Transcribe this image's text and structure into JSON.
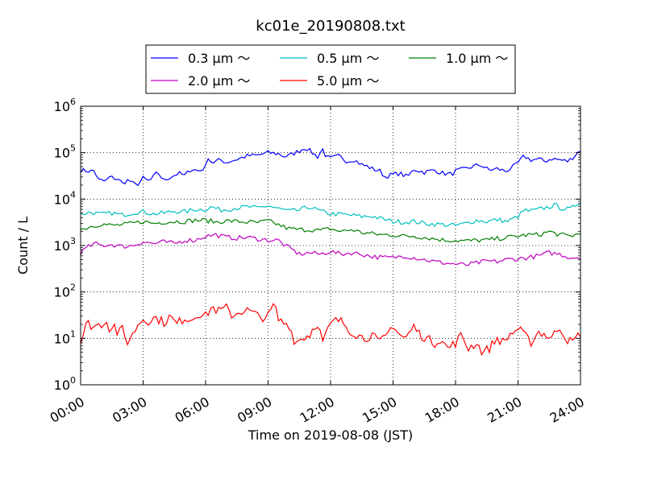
{
  "chart_data": {
    "type": "line",
    "title": "kc01e_20190808.txt",
    "xlabel": "Time on 2019-08-08 (JST)",
    "ylabel": "Count / L",
    "yscale": "log",
    "xlim_hours": [
      0,
      24
    ],
    "ylim": [
      1,
      1000000
    ],
    "x_ticks": [
      "00:00",
      "03:00",
      "06:00",
      "09:00",
      "12:00",
      "15:00",
      "18:00",
      "21:00",
      "24:00"
    ],
    "y_ticks": [
      {
        "base": "10",
        "exp": "0",
        "value": 1
      },
      {
        "base": "10",
        "exp": "1",
        "value": 10
      },
      {
        "base": "10",
        "exp": "2",
        "value": 100
      },
      {
        "base": "10",
        "exp": "3",
        "value": 1000
      },
      {
        "base": "10",
        "exp": "4",
        "value": 10000
      },
      {
        "base": "10",
        "exp": "5",
        "value": 100000
      },
      {
        "base": "10",
        "exp": "6",
        "value": 1000000
      }
    ],
    "grid": true,
    "legend_position": "top-center",
    "series": [
      {
        "name": "0.3 μm ～",
        "color": "#0000ff",
        "keypoints": [
          [
            0,
            42000
          ],
          [
            0.5,
            40000
          ],
          [
            0.7,
            42000
          ],
          [
            0.8,
            26000
          ],
          [
            1.2,
            24000
          ],
          [
            1.4,
            30000
          ],
          [
            1.8,
            27000
          ],
          [
            2,
            22000
          ],
          [
            2.3,
            26000
          ],
          [
            2.6,
            20000
          ],
          [
            2.8,
            22000
          ],
          [
            3,
            28000
          ],
          [
            3.3,
            24000
          ],
          [
            3.7,
            38000
          ],
          [
            4,
            25000
          ],
          [
            4.3,
            30000
          ],
          [
            4.7,
            36000
          ],
          [
            5,
            32000
          ],
          [
            5.3,
            45000
          ],
          [
            5.7,
            40000
          ],
          [
            6,
            50000
          ],
          [
            6.1,
            85000
          ],
          [
            6.3,
            60000
          ],
          [
            6.7,
            70000
          ],
          [
            7,
            62000
          ],
          [
            7.5,
            72000
          ],
          [
            8,
            85000
          ],
          [
            8.5,
            88000
          ],
          [
            9,
            100000
          ],
          [
            9.5,
            95000
          ],
          [
            9.8,
            82000
          ],
          [
            10.1,
            90000
          ],
          [
            10.5,
            110000
          ],
          [
            10.8,
            130000
          ],
          [
            11,
            110000
          ],
          [
            11.4,
            80000
          ],
          [
            11.6,
            125000
          ],
          [
            11.8,
            80000
          ],
          [
            12,
            75000
          ],
          [
            12.4,
            85000
          ],
          [
            12.8,
            65000
          ],
          [
            13.1,
            72000
          ],
          [
            13.5,
            55000
          ],
          [
            13.8,
            50000
          ],
          [
            14,
            45000
          ],
          [
            14.4,
            40000
          ],
          [
            14.6,
            30000
          ],
          [
            15,
            34000
          ],
          [
            15.3,
            36000
          ],
          [
            15.7,
            30000
          ],
          [
            16,
            44000
          ],
          [
            16.5,
            38000
          ],
          [
            17,
            42000
          ],
          [
            17.4,
            36000
          ],
          [
            17.8,
            34000
          ],
          [
            18,
            40000
          ],
          [
            18.4,
            44000
          ],
          [
            18.8,
            50000
          ],
          [
            19.2,
            55000
          ],
          [
            19.6,
            42000
          ],
          [
            20,
            45000
          ],
          [
            20.4,
            40000
          ],
          [
            20.8,
            50000
          ],
          [
            21,
            60000
          ],
          [
            21.3,
            85000
          ],
          [
            21.6,
            70000
          ],
          [
            22,
            72000
          ],
          [
            22.3,
            65000
          ],
          [
            22.6,
            75000
          ],
          [
            23,
            70000
          ],
          [
            23.4,
            65000
          ],
          [
            23.7,
            85000
          ],
          [
            24,
            115000
          ]
        ]
      },
      {
        "name": "0.5 μm ～",
        "color": "#00bfbf",
        "keypoints": [
          [
            0,
            4800
          ],
          [
            0.5,
            5200
          ],
          [
            1,
            4700
          ],
          [
            1.5,
            5000
          ],
          [
            2,
            4500
          ],
          [
            2.5,
            5100
          ],
          [
            3,
            5400
          ],
          [
            3.5,
            4800
          ],
          [
            4,
            5000
          ],
          [
            4.5,
            5500
          ],
          [
            5,
            5300
          ],
          [
            5.5,
            6000
          ],
          [
            6,
            6000
          ],
          [
            6.3,
            6800
          ],
          [
            6.7,
            5800
          ],
          [
            7,
            6000
          ],
          [
            7.5,
            6500
          ],
          [
            8,
            6800
          ],
          [
            8.5,
            6400
          ],
          [
            9,
            7200
          ],
          [
            9.5,
            6200
          ],
          [
            10,
            5500
          ],
          [
            10.5,
            5800
          ],
          [
            11,
            6800
          ],
          [
            11.5,
            5500
          ],
          [
            12,
            4800
          ],
          [
            12.5,
            4700
          ],
          [
            13,
            4500
          ],
          [
            13.5,
            4200
          ],
          [
            14,
            4300
          ],
          [
            14.5,
            3700
          ],
          [
            15,
            3300
          ],
          [
            15.5,
            3200
          ],
          [
            16,
            3300
          ],
          [
            16.5,
            3000
          ],
          [
            17,
            2900
          ],
          [
            17.5,
            2800
          ],
          [
            18,
            2700
          ],
          [
            18.5,
            3000
          ],
          [
            19,
            3500
          ],
          [
            19.5,
            3300
          ],
          [
            20,
            3600
          ],
          [
            20.5,
            3300
          ],
          [
            21,
            4200
          ],
          [
            21.3,
            5800
          ],
          [
            21.6,
            5500
          ],
          [
            22,
            6000
          ],
          [
            22.5,
            6800
          ],
          [
            22.8,
            7500
          ],
          [
            23,
            6500
          ],
          [
            23.5,
            6000
          ],
          [
            24,
            9000
          ]
        ]
      },
      {
        "name": "1.0 μm ～",
        "color": "#008000",
        "keypoints": [
          [
            0,
            2200
          ],
          [
            0.5,
            2600
          ],
          [
            1,
            2900
          ],
          [
            1.5,
            2700
          ],
          [
            2,
            2800
          ],
          [
            2.5,
            3000
          ],
          [
            3,
            3300
          ],
          [
            3.5,
            3000
          ],
          [
            4,
            3200
          ],
          [
            4.5,
            3300
          ],
          [
            5,
            3300
          ],
          [
            5.5,
            3500
          ],
          [
            6,
            3500
          ],
          [
            6.5,
            3200
          ],
          [
            7,
            3400
          ],
          [
            7.5,
            3300
          ],
          [
            8,
            3200
          ],
          [
            8.5,
            3100
          ],
          [
            9,
            3400
          ],
          [
            9.5,
            2800
          ],
          [
            10,
            2300
          ],
          [
            10.5,
            2200
          ],
          [
            11,
            2200
          ],
          [
            11.5,
            2100
          ],
          [
            12,
            2300
          ],
          [
            12.5,
            2000
          ],
          [
            13,
            2200
          ],
          [
            13.5,
            1900
          ],
          [
            14,
            1800
          ],
          [
            14.5,
            1700
          ],
          [
            15,
            1700
          ],
          [
            15.5,
            1600
          ],
          [
            16,
            1600
          ],
          [
            16.5,
            1500
          ],
          [
            17,
            1400
          ],
          [
            17.5,
            1300
          ],
          [
            18,
            1300
          ],
          [
            18.5,
            1250
          ],
          [
            19,
            1300
          ],
          [
            19.5,
            1300
          ],
          [
            20,
            1400
          ],
          [
            20.5,
            1500
          ],
          [
            21,
            1600
          ],
          [
            21.5,
            1700
          ],
          [
            22,
            1700
          ],
          [
            22.5,
            2000
          ],
          [
            23,
            1700
          ],
          [
            23.5,
            1600
          ],
          [
            24,
            1800
          ]
        ]
      },
      {
        "name": "2.0 μm ～",
        "color": "#bf00bf",
        "keypoints": [
          [
            0,
            700
          ],
          [
            0.3,
            900
          ],
          [
            0.7,
            1100
          ],
          [
            1,
            1000
          ],
          [
            1.5,
            1050
          ],
          [
            2,
            950
          ],
          [
            2.5,
            1000
          ],
          [
            3,
            1200
          ],
          [
            3.5,
            1100
          ],
          [
            4,
            1200
          ],
          [
            4.5,
            1100
          ],
          [
            5,
            1300
          ],
          [
            5.5,
            1300
          ],
          [
            6,
            1600
          ],
          [
            6.5,
            1700
          ],
          [
            7,
            1500
          ],
          [
            7.5,
            1450
          ],
          [
            8,
            1500
          ],
          [
            8.5,
            1400
          ],
          [
            9,
            1300
          ],
          [
            9.5,
            1300
          ],
          [
            9.8,
            1000
          ],
          [
            10,
            900
          ],
          [
            10.5,
            650
          ],
          [
            11,
            700
          ],
          [
            11.5,
            650
          ],
          [
            12,
            750
          ],
          [
            12.5,
            650
          ],
          [
            13,
            700
          ],
          [
            13.5,
            650
          ],
          [
            14,
            580
          ],
          [
            14.5,
            550
          ],
          [
            15,
            550
          ],
          [
            15.5,
            600
          ],
          [
            16,
            550
          ],
          [
            16.5,
            500
          ],
          [
            17,
            450
          ],
          [
            17.5,
            420
          ],
          [
            18,
            400
          ],
          [
            18.5,
            380
          ],
          [
            19,
            420
          ],
          [
            19.5,
            460
          ],
          [
            20,
            450
          ],
          [
            20.5,
            500
          ],
          [
            21,
            520
          ],
          [
            21.5,
            550
          ],
          [
            22,
            600
          ],
          [
            22.5,
            700
          ],
          [
            23,
            650
          ],
          [
            23.5,
            550
          ],
          [
            24,
            560
          ]
        ]
      },
      {
        "name": "5.0 μm ～",
        "color": "#ff0000",
        "keypoints": [
          [
            0,
            8
          ],
          [
            0.3,
            22
          ],
          [
            0.6,
            18
          ],
          [
            1,
            20
          ],
          [
            1.2,
            26
          ],
          [
            1.4,
            16
          ],
          [
            1.6,
            20
          ],
          [
            1.8,
            12
          ],
          [
            2,
            16
          ],
          [
            2.2,
            8
          ],
          [
            2.5,
            12
          ],
          [
            2.8,
            22
          ],
          [
            3,
            26
          ],
          [
            3.3,
            24
          ],
          [
            3.6,
            28
          ],
          [
            4,
            22
          ],
          [
            4.3,
            30
          ],
          [
            4.6,
            20
          ],
          [
            5,
            28
          ],
          [
            5.3,
            25
          ],
          [
            5.6,
            35
          ],
          [
            6,
            30
          ],
          [
            6.3,
            48
          ],
          [
            6.6,
            38
          ],
          [
            7,
            45
          ],
          [
            7.3,
            30
          ],
          [
            7.6,
            38
          ],
          [
            8,
            40
          ],
          [
            8.3,
            35
          ],
          [
            8.6,
            28
          ],
          [
            9,
            30
          ],
          [
            9.3,
            55
          ],
          [
            9.5,
            25
          ],
          [
            9.7,
            22
          ],
          [
            10,
            20
          ],
          [
            10.3,
            8
          ],
          [
            10.6,
            10
          ],
          [
            11,
            12
          ],
          [
            11.2,
            18
          ],
          [
            11.4,
            22
          ],
          [
            11.6,
            8
          ],
          [
            12,
            20
          ],
          [
            12.3,
            25
          ],
          [
            12.6,
            22
          ],
          [
            13,
            14
          ],
          [
            13.3,
            12
          ],
          [
            13.6,
            10
          ],
          [
            14,
            12
          ],
          [
            14.3,
            8
          ],
          [
            14.6,
            10
          ],
          [
            15,
            20
          ],
          [
            15.3,
            12
          ],
          [
            15.6,
            10
          ],
          [
            16,
            18
          ],
          [
            16.3,
            12
          ],
          [
            16.6,
            10
          ],
          [
            17,
            8
          ],
          [
            17.3,
            10
          ],
          [
            17.6,
            6
          ],
          [
            18,
            8
          ],
          [
            18.3,
            12
          ],
          [
            18.6,
            6
          ],
          [
            19,
            8
          ],
          [
            19.3,
            5
          ],
          [
            19.6,
            6
          ],
          [
            20,
            10
          ],
          [
            20.3,
            8
          ],
          [
            20.6,
            12
          ],
          [
            21,
            16
          ],
          [
            21.3,
            12
          ],
          [
            21.6,
            8
          ],
          [
            22,
            14
          ],
          [
            22.3,
            12
          ],
          [
            22.6,
            10
          ],
          [
            23,
            18
          ],
          [
            23.3,
            10
          ],
          [
            23.6,
            8
          ],
          [
            24,
            13
          ]
        ]
      }
    ]
  }
}
